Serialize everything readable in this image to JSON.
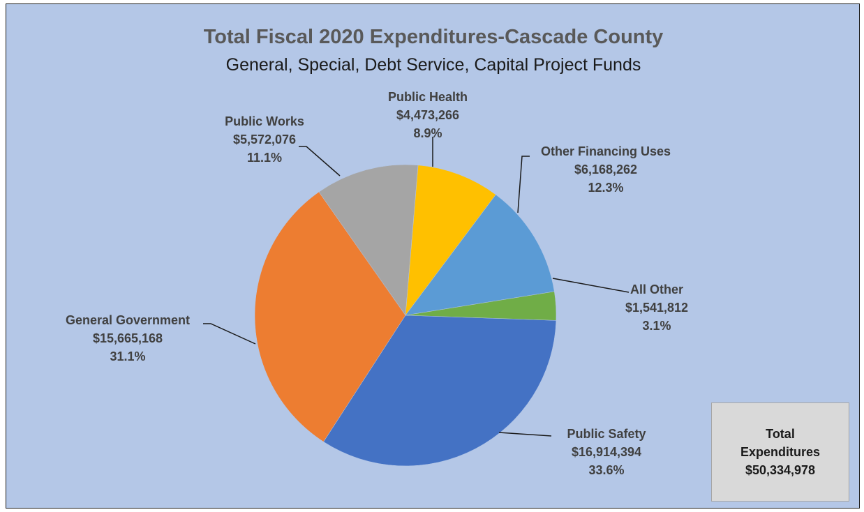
{
  "chart_data": {
    "type": "pie",
    "title": "Total Fiscal 2020 Expenditures-Cascade County",
    "subtitle": "General, Special, Debt Service, Capital Project Funds",
    "slices": [
      {
        "name": "Public Safety",
        "value_label": "$16,914,394",
        "value": 16914394,
        "percent": "33.6%",
        "color": "#4472c4"
      },
      {
        "name": "General Government",
        "value_label": "$15,665,168",
        "value": 15665168,
        "percent": "31.1%",
        "color": "#ed7d31"
      },
      {
        "name": "Public Works",
        "value_label": "$5,572,076",
        "value": 5572076,
        "percent": "11.1%",
        "color": "#a5a5a5"
      },
      {
        "name": "Public Health",
        "value_label": "$4,473,266",
        "value": 4473266,
        "percent": "8.9%",
        "color": "#ffc000"
      },
      {
        "name": "Other Financing Uses",
        "value_label": "$6,168,262",
        "value": 6168262,
        "percent": "12.3%",
        "color": "#5b9bd5"
      },
      {
        "name": "All Other",
        "value_label": "$1,541,812",
        "value": 1541812,
        "percent": "3.1%",
        "color": "#70ad47"
      }
    ]
  },
  "total_box": {
    "line1": "Total",
    "line2": "Expenditures",
    "amount": "$50,334,978"
  }
}
